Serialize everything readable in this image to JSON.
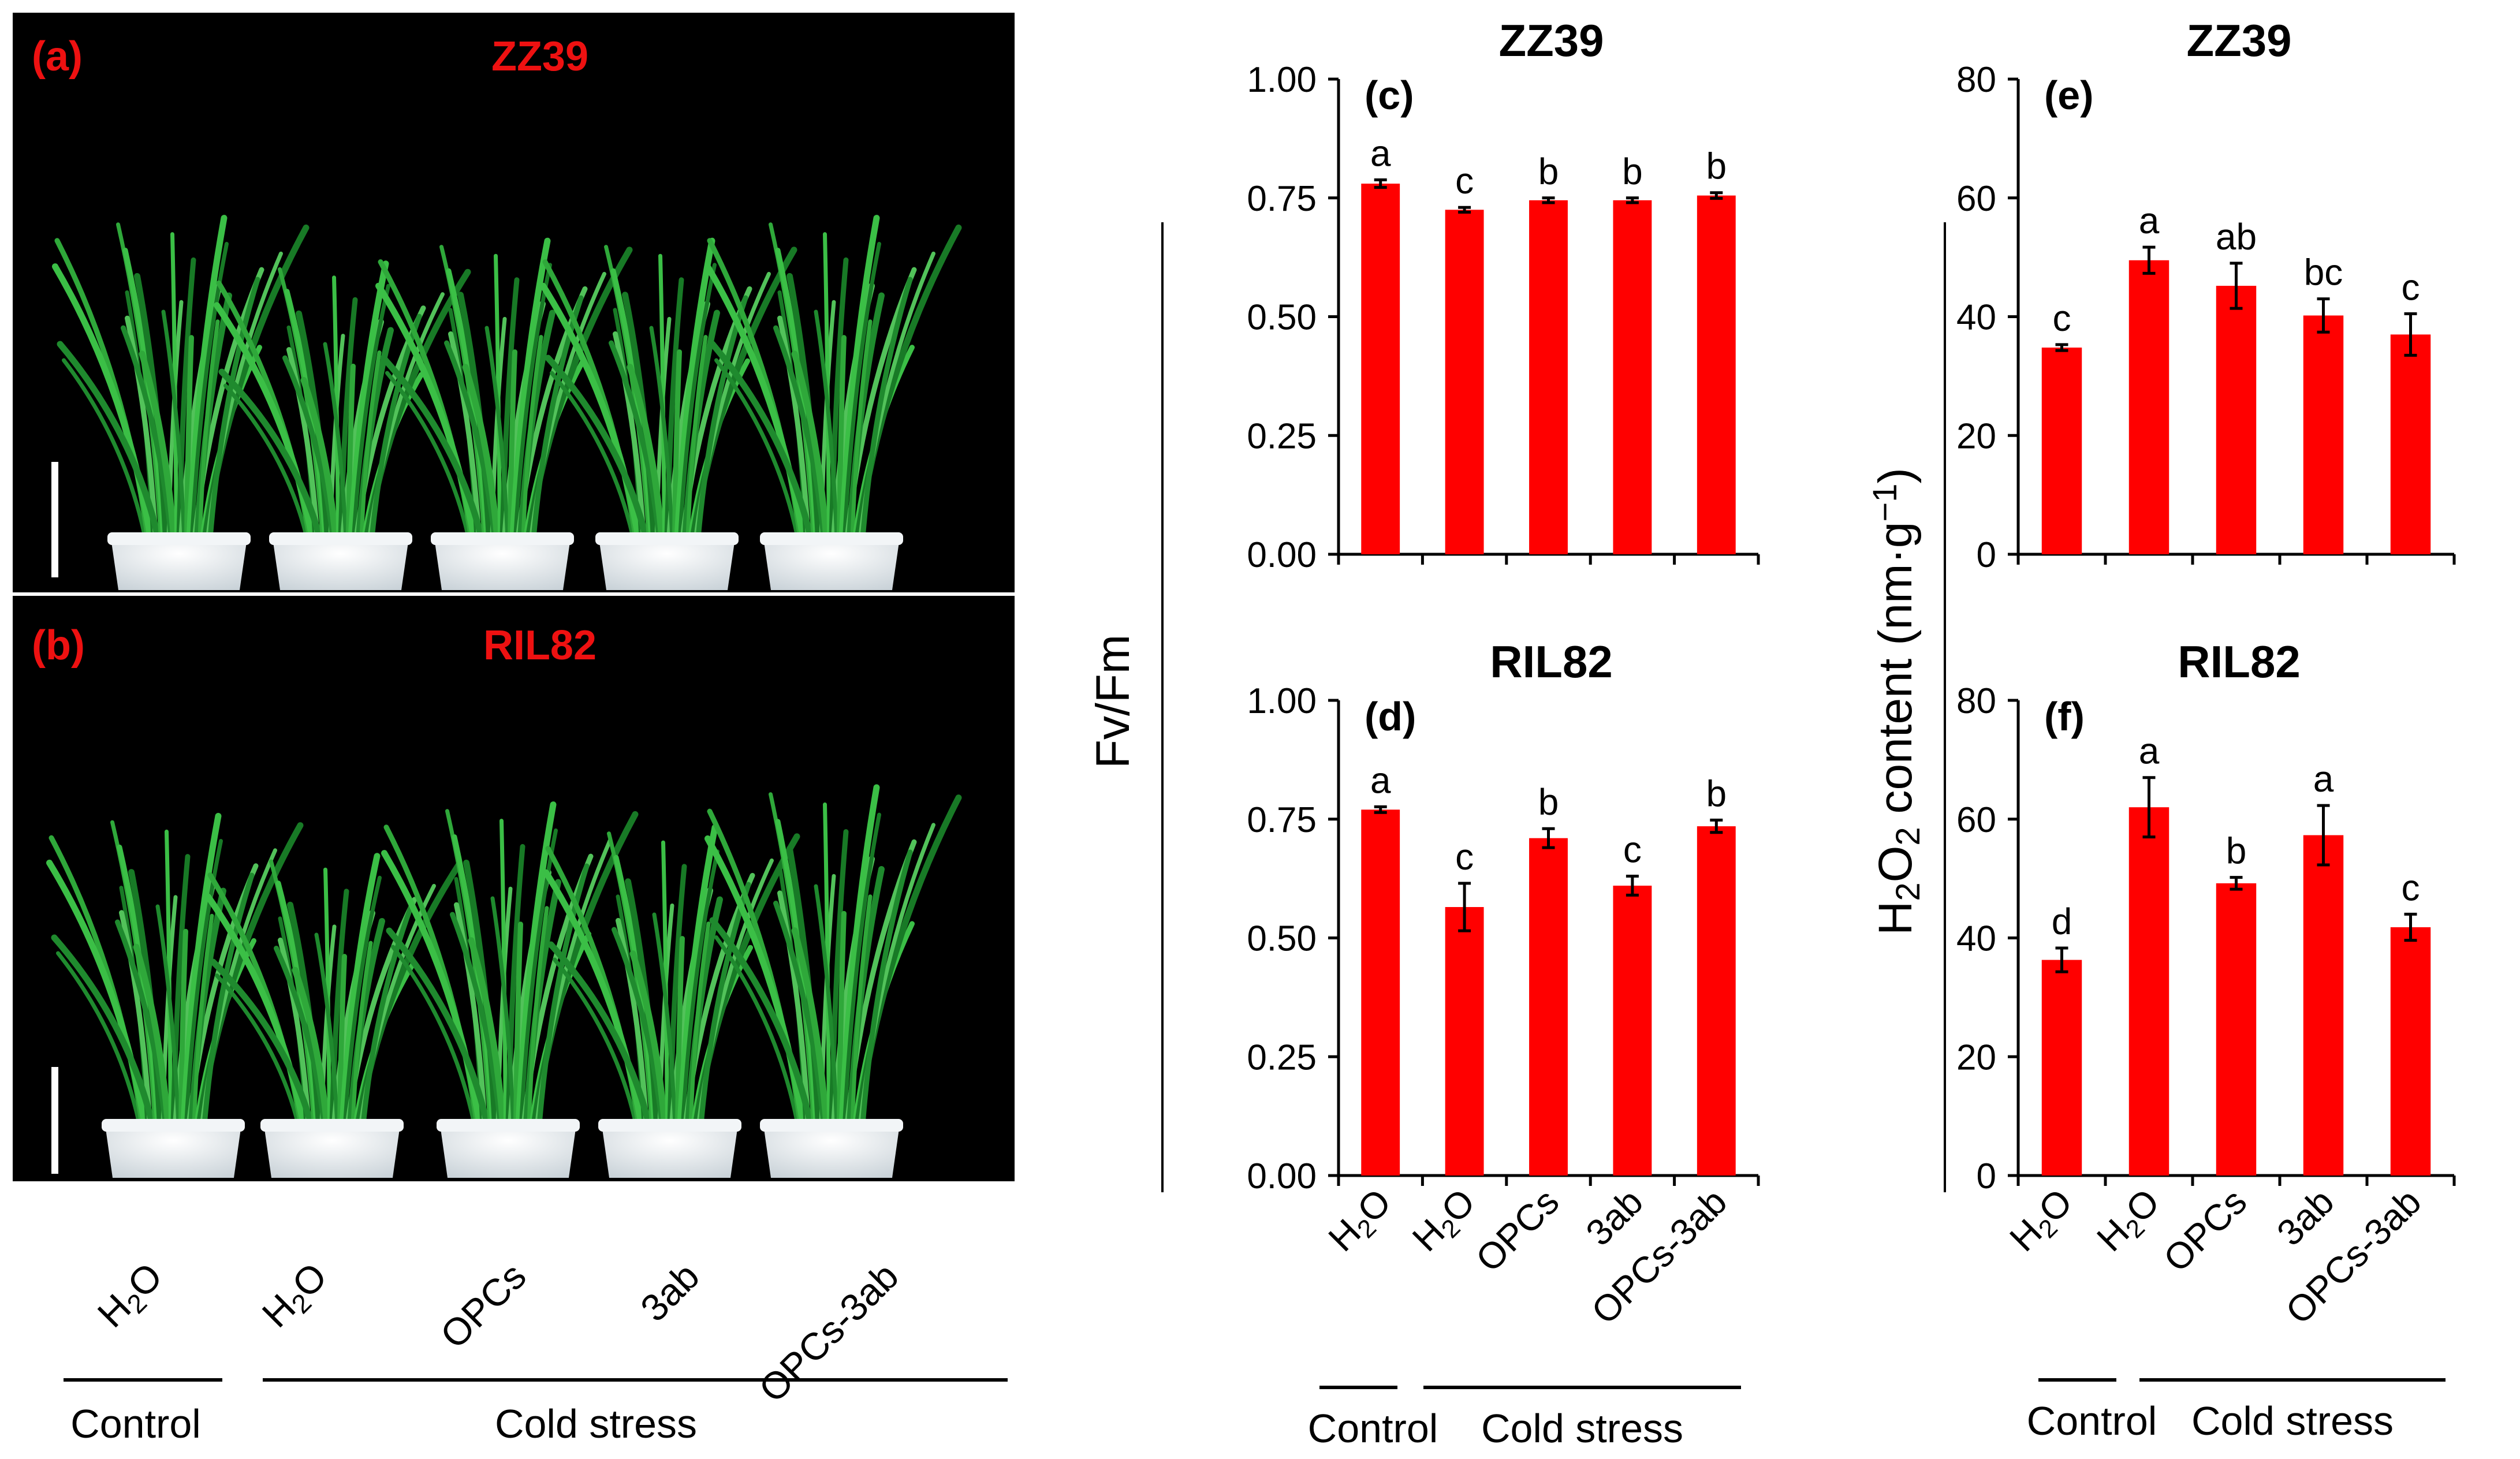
{
  "photos": {
    "panel_a": {
      "letter": "(a)",
      "title": "ZZ39"
    },
    "panel_b": {
      "letter": "(b)",
      "title": "RIL82"
    },
    "x_labels": [
      "H2O",
      "H2O",
      "OPCs",
      "3ab",
      "OPCs-3ab"
    ],
    "group_control": "Control",
    "group_cold": "Cold stress"
  },
  "fv_ylabel": "Fv/Fm",
  "h2o2_ylabel": "H2O2 content (nm·g-1)",
  "group_labels": {
    "control": "Control",
    "cold": "Cold stress"
  },
  "colors": {
    "bar": "#ff0000",
    "panel_label": "#ee1111",
    "photo_bg": "#000000"
  },
  "chart_data": [
    {
      "id": "c",
      "type": "bar",
      "panel": "(c)",
      "title": "ZZ39",
      "categories": [
        "H2O",
        "H2O",
        "OPCs",
        "3ab",
        "OPCs-3ab"
      ],
      "values": [
        0.78,
        0.725,
        0.745,
        0.745,
        0.755
      ],
      "errors": [
        0.008,
        0.005,
        0.005,
        0.005,
        0.006
      ],
      "letters": [
        "a",
        "c",
        "b",
        "b",
        "b"
      ],
      "ylim": [
        0,
        1
      ],
      "yticks": [
        "0.00",
        "0.25",
        "0.50",
        "0.75",
        "1.00"
      ],
      "ylabel": "Fv/Fm",
      "xlabel": ""
    },
    {
      "id": "d",
      "type": "bar",
      "panel": "(d)",
      "title": "RIL82",
      "categories": [
        "H2O",
        "H2O",
        "OPCs",
        "3ab",
        "OPCs-3ab"
      ],
      "values": [
        0.77,
        0.565,
        0.71,
        0.61,
        0.735
      ],
      "errors": [
        0.006,
        0.05,
        0.02,
        0.02,
        0.013
      ],
      "letters": [
        "a",
        "c",
        "b",
        "c",
        "b"
      ],
      "ylim": [
        0,
        1
      ],
      "yticks": [
        "0.00",
        "0.25",
        "0.50",
        "0.75",
        "1.00"
      ],
      "ylabel": "Fv/Fm",
      "xlabel": ""
    },
    {
      "id": "e",
      "type": "bar",
      "panel": "(e)",
      "title": "ZZ39",
      "categories": [
        "H2O",
        "H2O",
        "OPCs",
        "3ab",
        "OPCs-3ab"
      ],
      "values": [
        34.8,
        49.5,
        45.2,
        40.2,
        37.0
      ],
      "errors": [
        0.5,
        2.2,
        3.8,
        2.8,
        3.5
      ],
      "letters": [
        "c",
        "a",
        "ab",
        "bc",
        "c"
      ],
      "ylim": [
        0,
        80
      ],
      "yticks": [
        "0",
        "20",
        "40",
        "60",
        "80"
      ],
      "ylabel": "H2O2 content (nm·g-1)",
      "xlabel": ""
    },
    {
      "id": "f",
      "type": "bar",
      "panel": "(f)",
      "title": "RIL82",
      "categories": [
        "H2O",
        "H2O",
        "OPCs",
        "3ab",
        "OPCs-3ab"
      ],
      "values": [
        36.3,
        62.0,
        49.2,
        57.3,
        41.8
      ],
      "errors": [
        2.0,
        5.0,
        1.0,
        5.0,
        2.2
      ],
      "letters": [
        "d",
        "a",
        "b",
        "a",
        "c"
      ],
      "ylim": [
        0,
        80
      ],
      "yticks": [
        "0",
        "20",
        "40",
        "60",
        "80"
      ],
      "ylabel": "H2O2 content (nm·g-1)",
      "xlabel": ""
    }
  ]
}
